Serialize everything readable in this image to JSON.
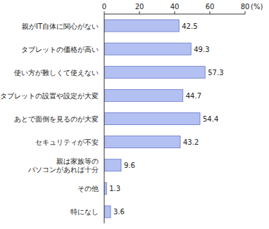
{
  "chart_data": {
    "type": "bar",
    "orientation": "horizontal",
    "categories": [
      "親がIT自体に関心がない",
      "タブレットの価格が高い",
      "使い方が難しくて使えない",
      "タブレットの設置や設定が大変",
      "あとで面倒を見るのが大変",
      "セキュリティが不安",
      "親は家族等の\nパソコンがあれば十分",
      "その他",
      "特になし"
    ],
    "values": [
      42.5,
      49.3,
      57.3,
      44.7,
      54.4,
      43.2,
      9.6,
      1.3,
      3.6
    ],
    "color": "#b3c0f2",
    "xlim": [
      0,
      80
    ],
    "xticks": [
      0,
      20,
      40,
      60,
      80
    ],
    "xlabel": "(%)",
    "data_labels": true,
    "grid": false
  }
}
